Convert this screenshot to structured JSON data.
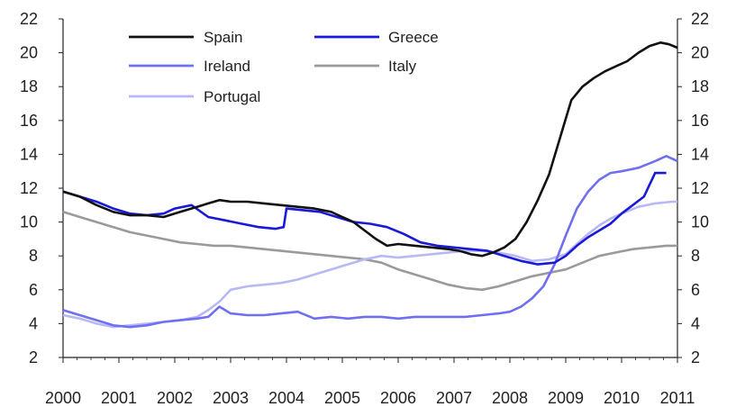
{
  "chart_data": {
    "type": "line",
    "title": "",
    "xlabel": "",
    "ylabel": "",
    "ylim": [
      2,
      22
    ],
    "xlim": [
      2000,
      2011
    ],
    "yticks": [
      2,
      4,
      6,
      8,
      10,
      12,
      14,
      16,
      18,
      20,
      22
    ],
    "ytick_labels": [
      "2",
      "4",
      "6",
      "8",
      "10",
      "12",
      "14",
      "16",
      "18",
      "20",
      "22"
    ],
    "xtick_labels": [
      "2000",
      "2001",
      "2002",
      "2003",
      "2004",
      "2005",
      "2006",
      "2007",
      "2008",
      "2009",
      "2010",
      "2011"
    ],
    "grid": false,
    "legend_position": "top-left",
    "series": [
      {
        "name": "Spain",
        "color": "#111111",
        "x": [
          2000.0,
          2000.3,
          2000.6,
          2000.9,
          2001.2,
          2001.5,
          2001.8,
          2002.1,
          2002.4,
          2002.6,
          2002.8,
          2003.0,
          2003.3,
          2003.6,
          2003.9,
          2004.2,
          2004.5,
          2004.8,
          2005.0,
          2005.2,
          2005.4,
          2005.6,
          2005.8,
          2006.0,
          2006.3,
          2006.6,
          2006.9,
          2007.1,
          2007.3,
          2007.5,
          2007.7,
          2007.9,
          2008.1,
          2008.3,
          2008.5,
          2008.7,
          2008.9,
          2009.1,
          2009.3,
          2009.5,
          2009.7,
          2009.9,
          2010.1,
          2010.3,
          2010.5,
          2010.7,
          2010.85,
          2011.0
        ],
        "values": [
          11.8,
          11.5,
          11.0,
          10.6,
          10.4,
          10.4,
          10.3,
          10.6,
          10.9,
          11.1,
          11.3,
          11.2,
          11.2,
          11.1,
          11.0,
          10.9,
          10.8,
          10.6,
          10.3,
          10.0,
          9.5,
          9.0,
          8.6,
          8.7,
          8.6,
          8.5,
          8.4,
          8.3,
          8.1,
          8.0,
          8.2,
          8.5,
          9.0,
          10.0,
          11.3,
          12.8,
          15.0,
          17.2,
          18.0,
          18.5,
          18.9,
          19.2,
          19.5,
          20.0,
          20.4,
          20.6,
          20.5,
          20.3
        ]
      },
      {
        "name": "Greece",
        "color": "#1a1ad6",
        "x": [
          2000.0,
          2000.3,
          2000.6,
          2000.9,
          2001.2,
          2001.5,
          2001.8,
          2002.0,
          2002.3,
          2002.6,
          2002.9,
          2003.2,
          2003.5,
          2003.8,
          2003.95,
          2004.0,
          2004.3,
          2004.6,
          2004.9,
          2005.2,
          2005.5,
          2005.8,
          2006.1,
          2006.4,
          2006.7,
          2007.0,
          2007.3,
          2007.6,
          2007.9,
          2008.2,
          2008.5,
          2008.8,
          2009.0,
          2009.2,
          2009.4,
          2009.6,
          2009.8,
          2010.0,
          2010.2,
          2010.4,
          2010.6,
          2010.8
        ],
        "values": [
          11.8,
          11.5,
          11.2,
          10.8,
          10.5,
          10.4,
          10.5,
          10.8,
          11.0,
          10.3,
          10.1,
          9.9,
          9.7,
          9.6,
          9.7,
          10.8,
          10.7,
          10.6,
          10.3,
          10.0,
          9.9,
          9.7,
          9.3,
          8.8,
          8.6,
          8.5,
          8.4,
          8.3,
          8.0,
          7.7,
          7.5,
          7.6,
          8.0,
          8.6,
          9.1,
          9.5,
          9.9,
          10.5,
          11.0,
          11.5,
          12.9,
          12.9
        ]
      },
      {
        "name": "Ireland",
        "color": "#6f6ff0",
        "x": [
          2000.0,
          2000.3,
          2000.6,
          2000.9,
          2001.2,
          2001.5,
          2001.8,
          2002.1,
          2002.4,
          2002.6,
          2002.8,
          2003.0,
          2003.3,
          2003.6,
          2003.9,
          2004.2,
          2004.5,
          2004.8,
          2005.1,
          2005.4,
          2005.7,
          2006.0,
          2006.3,
          2006.6,
          2006.9,
          2007.2,
          2007.5,
          2007.8,
          2008.0,
          2008.2,
          2008.4,
          2008.6,
          2008.8,
          2009.0,
          2009.2,
          2009.4,
          2009.6,
          2009.8,
          2010.0,
          2010.3,
          2010.6,
          2010.8,
          2011.0
        ],
        "values": [
          4.8,
          4.5,
          4.2,
          3.9,
          3.8,
          3.9,
          4.1,
          4.2,
          4.3,
          4.4,
          5.0,
          4.6,
          4.5,
          4.5,
          4.6,
          4.7,
          4.3,
          4.4,
          4.3,
          4.4,
          4.4,
          4.3,
          4.4,
          4.4,
          4.4,
          4.4,
          4.5,
          4.6,
          4.7,
          5.0,
          5.5,
          6.2,
          7.5,
          9.2,
          10.8,
          11.8,
          12.5,
          12.9,
          13.0,
          13.2,
          13.6,
          13.9,
          13.6
        ]
      },
      {
        "name": "Italy",
        "color": "#9a9a9a",
        "x": [
          2000.0,
          2000.3,
          2000.6,
          2000.9,
          2001.2,
          2001.5,
          2001.8,
          2002.1,
          2002.4,
          2002.7,
          2003.0,
          2003.3,
          2003.6,
          2003.9,
          2004.2,
          2004.5,
          2004.8,
          2005.1,
          2005.4,
          2005.7,
          2006.0,
          2006.3,
          2006.6,
          2006.9,
          2007.2,
          2007.5,
          2007.8,
          2008.1,
          2008.4,
          2008.7,
          2009.0,
          2009.3,
          2009.6,
          2009.9,
          2010.2,
          2010.5,
          2010.8,
          2011.0
        ],
        "values": [
          10.6,
          10.3,
          10.0,
          9.7,
          9.4,
          9.2,
          9.0,
          8.8,
          8.7,
          8.6,
          8.6,
          8.5,
          8.4,
          8.3,
          8.2,
          8.1,
          8.0,
          7.9,
          7.8,
          7.6,
          7.2,
          6.9,
          6.6,
          6.3,
          6.1,
          6.0,
          6.2,
          6.5,
          6.8,
          7.0,
          7.2,
          7.6,
          8.0,
          8.2,
          8.4,
          8.5,
          8.6,
          8.6
        ]
      },
      {
        "name": "Portugal",
        "color": "#b8b8f4",
        "x": [
          2000.0,
          2000.3,
          2000.6,
          2000.9,
          2001.2,
          2001.5,
          2001.8,
          2002.1,
          2002.4,
          2002.6,
          2002.8,
          2003.0,
          2003.3,
          2003.6,
          2003.9,
          2004.2,
          2004.5,
          2004.8,
          2005.1,
          2005.4,
          2005.7,
          2006.0,
          2006.3,
          2006.6,
          2006.9,
          2007.2,
          2007.5,
          2007.8,
          2008.1,
          2008.4,
          2008.7,
          2009.0,
          2009.2,
          2009.4,
          2009.6,
          2009.8,
          2010.0,
          2010.3,
          2010.6,
          2010.9,
          2011.0
        ],
        "values": [
          4.5,
          4.3,
          4.0,
          3.8,
          3.9,
          4.0,
          4.1,
          4.2,
          4.4,
          4.8,
          5.3,
          6.0,
          6.2,
          6.3,
          6.4,
          6.6,
          6.9,
          7.2,
          7.5,
          7.8,
          8.0,
          7.9,
          8.0,
          8.1,
          8.2,
          8.3,
          8.3,
          8.2,
          8.0,
          7.7,
          7.8,
          8.1,
          8.7,
          9.3,
          9.8,
          10.2,
          10.5,
          10.9,
          11.1,
          11.2,
          11.2
        ]
      }
    ]
  }
}
